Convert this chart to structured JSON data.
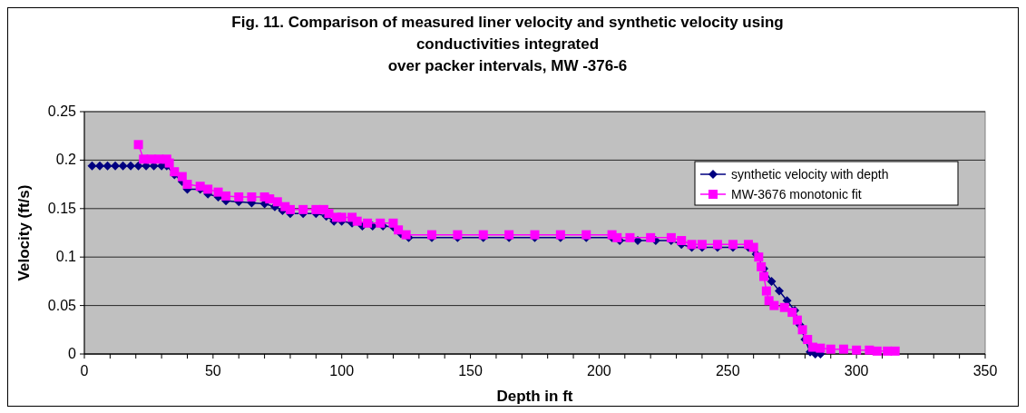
{
  "chart_data": {
    "type": "line",
    "title": "Fig. 11.  Comparison of measured liner velocity and synthetic velocity using\nconductivities integrated\nover packer intervals, MW -376-6",
    "xlabel": "Depth in ft",
    "ylabel": "Velocity (ft/s)",
    "xlim": [
      0,
      350
    ],
    "ylim": [
      0,
      0.25
    ],
    "xticks": [
      0,
      {
        "value": 10,
        "label": null
      },
      {
        "value": 20,
        "label": null
      },
      {
        "value": 30,
        "label": null
      },
      {
        "value": 40,
        "label": null
      },
      50,
      {
        "value": 60,
        "label": null
      },
      {
        "value": 70,
        "label": null
      },
      {
        "value": 80,
        "label": null
      },
      {
        "value": 90,
        "label": null
      },
      100,
      {
        "value": 110,
        "label": null
      },
      {
        "value": 120,
        "label": null
      },
      {
        "value": 130,
        "label": null
      },
      {
        "value": 140,
        "label": null
      },
      150,
      {
        "value": 160,
        "label": null
      },
      {
        "value": 170,
        "label": null
      },
      {
        "value": 180,
        "label": null
      },
      {
        "value": 190,
        "label": null
      },
      200,
      {
        "value": 210,
        "label": null
      },
      {
        "value": 220,
        "label": null
      },
      {
        "value": 230,
        "label": null
      },
      {
        "value": 240,
        "label": null
      },
      250,
      {
        "value": 260,
        "label": null
      },
      {
        "value": 270,
        "label": null
      },
      {
        "value": 280,
        "label": null
      },
      {
        "value": 290,
        "label": null
      },
      300,
      {
        "value": 310,
        "label": null
      },
      {
        "value": 320,
        "label": null
      },
      {
        "value": 330,
        "label": null
      },
      {
        "value": 340,
        "label": null
      },
      350
    ],
    "yticks": [
      0,
      0.05,
      0.1,
      0.15,
      0.2,
      0.25
    ],
    "grid": "y",
    "legend": "right",
    "series": [
      {
        "name": "synthetic velocity with depth",
        "color": "#000080",
        "marker": "diamond",
        "x": [
          3,
          6,
          9,
          12,
          15,
          18,
          21,
          24,
          27,
          30,
          32,
          35,
          38,
          40,
          45,
          48,
          52,
          55,
          60,
          65,
          70,
          74,
          77,
          80,
          85,
          90,
          94,
          97,
          100,
          104,
          108,
          112,
          116,
          120,
          123,
          126,
          135,
          145,
          155,
          165,
          175,
          185,
          195,
          205,
          208,
          215,
          222,
          228,
          232,
          236,
          240,
          246,
          252,
          258,
          261,
          264,
          267,
          270,
          273,
          276,
          278,
          280,
          282,
          284,
          286
        ],
        "values": [
          0.194,
          0.194,
          0.194,
          0.194,
          0.194,
          0.194,
          0.194,
          0.194,
          0.194,
          0.194,
          0.194,
          0.185,
          0.178,
          0.17,
          0.17,
          0.165,
          0.162,
          0.158,
          0.157,
          0.156,
          0.155,
          0.152,
          0.148,
          0.145,
          0.145,
          0.145,
          0.142,
          0.137,
          0.137,
          0.135,
          0.132,
          0.132,
          0.132,
          0.131,
          0.124,
          0.12,
          0.12,
          0.12,
          0.12,
          0.12,
          0.12,
          0.12,
          0.12,
          0.12,
          0.117,
          0.117,
          0.117,
          0.117,
          0.113,
          0.11,
          0.11,
          0.11,
          0.11,
          0.11,
          0.103,
          0.088,
          0.075,
          0.065,
          0.055,
          0.045,
          0.03,
          0.015,
          0.002,
          0,
          0
        ]
      },
      {
        "name": "MW-3676 monotonic fit",
        "color": "#ff00ff",
        "marker": "square",
        "x": [
          21,
          23,
          26,
          29,
          32,
          33,
          35,
          38,
          40,
          45,
          48,
          52,
          55,
          60,
          65,
          70,
          72,
          75,
          78,
          80,
          85,
          90,
          93,
          95,
          98,
          100,
          104,
          106,
          110,
          115,
          120,
          122,
          125,
          135,
          145,
          155,
          165,
          175,
          185,
          195,
          205,
          207,
          212,
          220,
          228,
          232,
          236,
          240,
          246,
          252,
          258,
          260,
          262,
          263,
          264,
          265,
          266,
          268,
          272,
          275,
          277,
          279,
          281,
          283,
          286,
          290,
          295,
          300,
          305,
          308,
          312,
          315
        ],
        "values": [
          0.216,
          0.201,
          0.201,
          0.201,
          0.201,
          0.197,
          0.188,
          0.183,
          0.175,
          0.173,
          0.17,
          0.167,
          0.163,
          0.162,
          0.162,
          0.162,
          0.16,
          0.157,
          0.152,
          0.149,
          0.149,
          0.149,
          0.149,
          0.145,
          0.141,
          0.141,
          0.141,
          0.137,
          0.135,
          0.135,
          0.135,
          0.128,
          0.123,
          0.123,
          0.123,
          0.123,
          0.123,
          0.123,
          0.123,
          0.123,
          0.123,
          0.12,
          0.12,
          0.12,
          0.12,
          0.117,
          0.113,
          0.113,
          0.113,
          0.113,
          0.113,
          0.11,
          0.1,
          0.09,
          0.08,
          0.065,
          0.055,
          0.05,
          0.048,
          0.043,
          0.035,
          0.025,
          0.015,
          0.007,
          0.006,
          0.005,
          0.005,
          0.004,
          0.004,
          0.003,
          0.003,
          0.003
        ]
      }
    ]
  }
}
